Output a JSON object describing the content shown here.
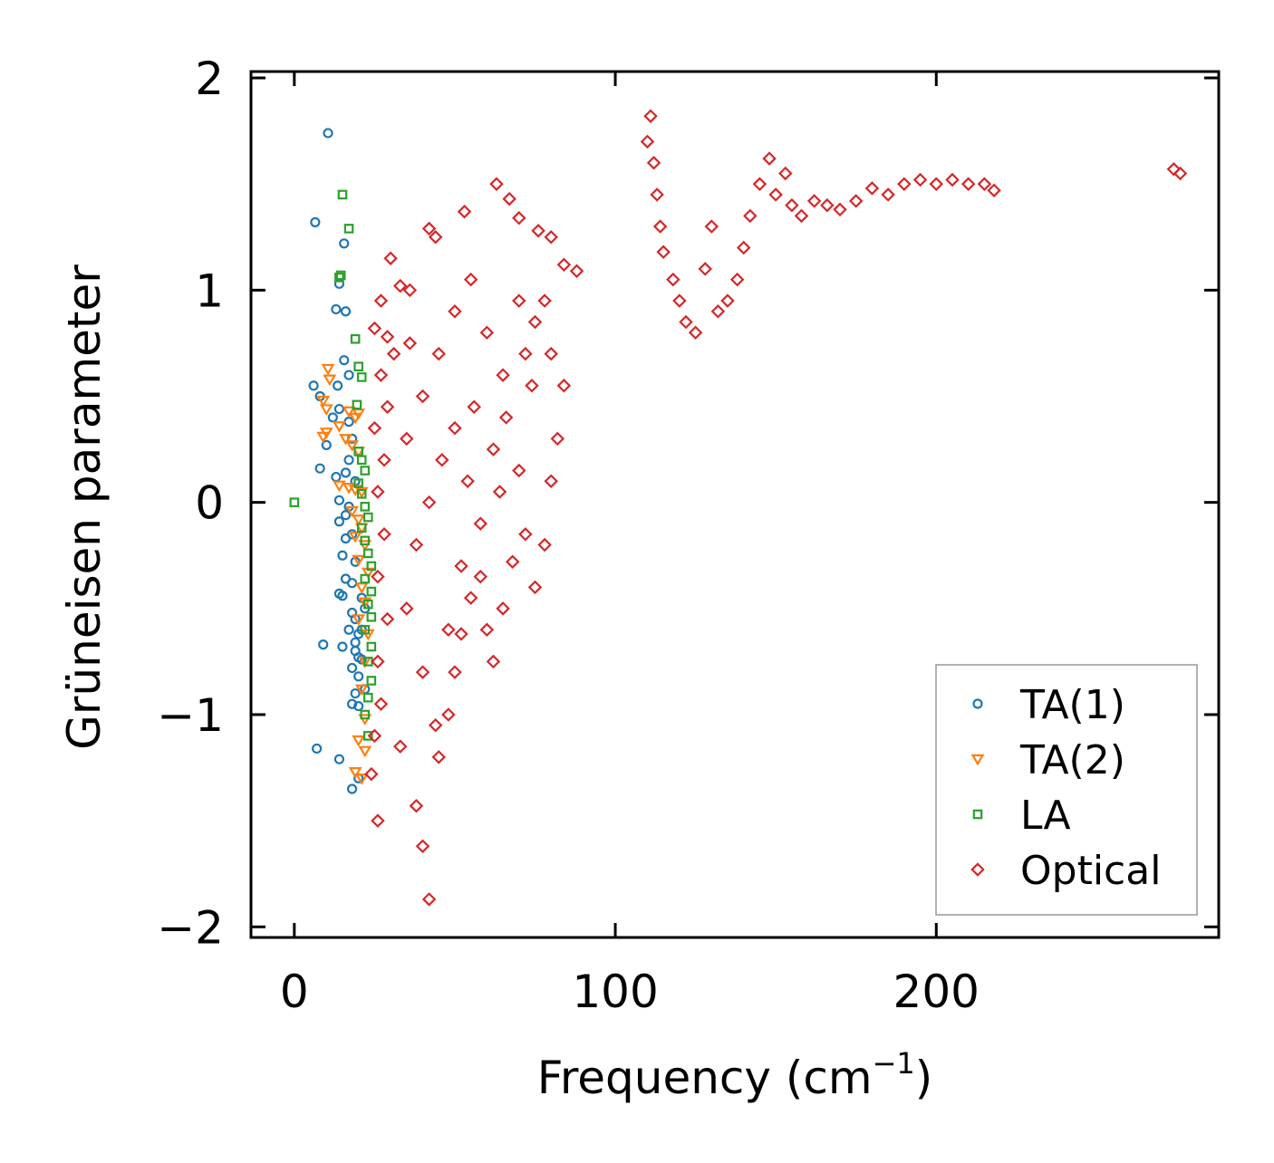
{
  "chart_data": {
    "type": "scatter",
    "title": "",
    "xlabel": "Frequency (cm",
    "xlabel_sup": "−1",
    "xlabel_end": ")",
    "ylabel": "Grüneisen parameter",
    "xlim": [
      -13.5,
      288
    ],
    "ylim": [
      -2.05,
      2.03
    ],
    "xticks": [
      0,
      100,
      200
    ],
    "xtick_labels": [
      "0",
      "100",
      "200"
    ],
    "yticks": [
      -2,
      -1,
      0,
      1,
      2
    ],
    "ytick_labels": [
      "−2",
      "−1",
      "0",
      "1",
      "2"
    ],
    "grid": false,
    "legend_position": "bottom-right",
    "series": [
      {
        "name": "TA(1)",
        "marker": "circle",
        "color": "#1f77b4",
        "points": [
          [
            10.5,
            1.74
          ],
          [
            6.5,
            1.32
          ],
          [
            15.5,
            1.22
          ],
          [
            14,
            1.03
          ],
          [
            13,
            0.91
          ],
          [
            16,
            0.9
          ],
          [
            15.5,
            0.67
          ],
          [
            17,
            0.6
          ],
          [
            6,
            0.55
          ],
          [
            13.5,
            0.55
          ],
          [
            8,
            0.5
          ],
          [
            12,
            0.4
          ],
          [
            14,
            0.44
          ],
          [
            17,
            0.38
          ],
          [
            18,
            0.3
          ],
          [
            10,
            0.27
          ],
          [
            8,
            0.16
          ],
          [
            13,
            0.12
          ],
          [
            16,
            0.14
          ],
          [
            17,
            0.2
          ],
          [
            19,
            0.1
          ],
          [
            14,
            0.01
          ],
          [
            16,
            -0.06
          ],
          [
            17,
            -0.02
          ],
          [
            14,
            -0.09
          ],
          [
            16,
            -0.17
          ],
          [
            18,
            -0.15
          ],
          [
            15,
            -0.25
          ],
          [
            19,
            -0.28
          ],
          [
            16,
            -0.36
          ],
          [
            18,
            -0.38
          ],
          [
            14,
            -0.43
          ],
          [
            15,
            -0.44
          ],
          [
            18,
            -0.52
          ],
          [
            19,
            -0.55
          ],
          [
            17,
            -0.6
          ],
          [
            20,
            -0.62
          ],
          [
            9,
            -0.67
          ],
          [
            15,
            -0.68
          ],
          [
            19,
            -0.7
          ],
          [
            20,
            -0.73
          ],
          [
            18,
            -0.78
          ],
          [
            20,
            -0.82
          ],
          [
            19,
            -0.9
          ],
          [
            18,
            -0.95
          ],
          [
            20,
            -0.96
          ],
          [
            21,
            -0.74
          ],
          [
            21,
            -0.6
          ],
          [
            22,
            -0.5
          ],
          [
            7,
            -1.16
          ],
          [
            14,
            -1.21
          ],
          [
            18,
            -1.35
          ],
          [
            20,
            -1.3
          ],
          [
            22,
            -0.88
          ],
          [
            19,
            -0.66
          ],
          [
            21,
            -0.45
          ]
        ]
      },
      {
        "name": "TA(2)",
        "marker": "triangle",
        "color": "#ff7f0e",
        "points": [
          [
            10.5,
            0.63
          ],
          [
            11,
            0.58
          ],
          [
            9,
            0.48
          ],
          [
            10,
            0.44
          ],
          [
            17,
            0.43
          ],
          [
            19,
            0.4
          ],
          [
            20,
            0.42
          ],
          [
            10,
            0.33
          ],
          [
            14,
            0.36
          ],
          [
            9,
            0.31
          ],
          [
            16,
            0.3
          ],
          [
            18,
            0.27
          ],
          [
            20,
            0.24
          ],
          [
            14,
            0.08
          ],
          [
            17,
            0.07
          ],
          [
            19,
            0.06
          ],
          [
            21,
            0.05
          ],
          [
            18,
            -0.04
          ],
          [
            20,
            -0.08
          ],
          [
            21,
            -0.12
          ],
          [
            19,
            -0.16
          ],
          [
            22,
            -0.2
          ],
          [
            20,
            -0.27
          ],
          [
            23,
            -0.33
          ],
          [
            21,
            -0.4
          ],
          [
            22,
            -0.47
          ],
          [
            20,
            -0.55
          ],
          [
            23,
            -0.62
          ],
          [
            22,
            -0.75
          ],
          [
            21,
            -0.88
          ],
          [
            22,
            -1.02
          ],
          [
            20,
            -1.12
          ],
          [
            22,
            -1.17
          ],
          [
            19,
            -1.27
          ],
          [
            21,
            -1.3
          ]
        ]
      },
      {
        "name": "LA",
        "marker": "square",
        "color": "#2ca02c",
        "points": [
          [
            15,
            1.45
          ],
          [
            17,
            1.29
          ],
          [
            14,
            1.06
          ],
          [
            14.5,
            1.07
          ],
          [
            19,
            0.77
          ],
          [
            20,
            0.64
          ],
          [
            21,
            0.59
          ],
          [
            19.5,
            0.46
          ],
          [
            20,
            0.24
          ],
          [
            21,
            0.2
          ],
          [
            22,
            0.15
          ],
          [
            20,
            0.09
          ],
          [
            21,
            0.04
          ],
          [
            22,
            -0.02
          ],
          [
            23,
            -0.07
          ],
          [
            21,
            -0.12
          ],
          [
            22,
            -0.18
          ],
          [
            23,
            -0.24
          ],
          [
            24,
            -0.3
          ],
          [
            22,
            -0.36
          ],
          [
            24,
            -0.42
          ],
          [
            23,
            -0.48
          ],
          [
            24,
            -0.54
          ],
          [
            22,
            -0.6
          ],
          [
            24,
            -0.68
          ],
          [
            23,
            -0.75
          ],
          [
            24,
            -0.84
          ],
          [
            23,
            -0.92
          ],
          [
            22,
            -1.0
          ],
          [
            23,
            -1.1
          ],
          [
            0,
            0.0
          ]
        ]
      },
      {
        "name": "Optical",
        "marker": "diamond",
        "color": "#d62728",
        "points": [
          [
            42,
            1.29
          ],
          [
            44,
            1.25
          ],
          [
            53,
            1.37
          ],
          [
            63,
            1.5
          ],
          [
            67,
            1.43
          ],
          [
            70,
            1.34
          ],
          [
            76,
            1.28
          ],
          [
            80,
            1.25
          ],
          [
            84,
            1.12
          ],
          [
            88,
            1.09
          ],
          [
            30,
            1.15
          ],
          [
            33,
            1.02
          ],
          [
            36,
            1.0
          ],
          [
            27,
            0.95
          ],
          [
            25,
            0.82
          ],
          [
            29,
            0.78
          ],
          [
            31,
            0.7
          ],
          [
            27,
            0.6
          ],
          [
            29,
            0.45
          ],
          [
            25,
            0.35
          ],
          [
            28,
            0.2
          ],
          [
            26,
            0.05
          ],
          [
            28,
            -0.15
          ],
          [
            26,
            -0.35
          ],
          [
            29,
            -0.55
          ],
          [
            26,
            -0.75
          ],
          [
            27,
            -0.95
          ],
          [
            25,
            -1.1
          ],
          [
            24,
            -1.28
          ],
          [
            26,
            -1.5
          ],
          [
            33,
            -1.15
          ],
          [
            38,
            -1.43
          ],
          [
            40,
            -1.62
          ],
          [
            42,
            -1.87
          ],
          [
            45,
            -1.2
          ],
          [
            48,
            -1.0
          ],
          [
            50,
            -0.8
          ],
          [
            52,
            -0.62
          ],
          [
            55,
            -0.45
          ],
          [
            58,
            -0.35
          ],
          [
            60,
            -0.6
          ],
          [
            62,
            -0.75
          ],
          [
            65,
            -0.5
          ],
          [
            68,
            -0.28
          ],
          [
            72,
            -0.15
          ],
          [
            75,
            -0.4
          ],
          [
            78,
            -0.2
          ],
          [
            80,
            0.1
          ],
          [
            82,
            0.3
          ],
          [
            84,
            0.55
          ],
          [
            35,
            0.3
          ],
          [
            40,
            0.5
          ],
          [
            45,
            0.7
          ],
          [
            50,
            0.9
          ],
          [
            55,
            1.05
          ],
          [
            60,
            0.8
          ],
          [
            65,
            0.6
          ],
          [
            70,
            0.95
          ],
          [
            75,
            0.85
          ],
          [
            80,
            0.7
          ],
          [
            38,
            -0.2
          ],
          [
            42,
            0.0
          ],
          [
            46,
            0.2
          ],
          [
            50,
            0.35
          ],
          [
            54,
            0.1
          ],
          [
            58,
            -0.1
          ],
          [
            62,
            0.25
          ],
          [
            66,
            0.4
          ],
          [
            70,
            0.15
          ],
          [
            74,
            0.55
          ],
          [
            35,
            -0.5
          ],
          [
            40,
            -0.8
          ],
          [
            44,
            -1.05
          ],
          [
            48,
            -0.6
          ],
          [
            52,
            -0.3
          ],
          [
            56,
            0.45
          ],
          [
            64,
            0.05
          ],
          [
            72,
            0.7
          ],
          [
            78,
            0.95
          ],
          [
            36,
            0.75
          ],
          [
            111,
            1.82
          ],
          [
            110,
            1.7
          ],
          [
            112,
            1.6
          ],
          [
            113,
            1.45
          ],
          [
            114,
            1.3
          ],
          [
            115,
            1.18
          ],
          [
            118,
            1.05
          ],
          [
            120,
            0.95
          ],
          [
            122,
            0.85
          ],
          [
            125,
            0.8
          ],
          [
            128,
            1.1
          ],
          [
            130,
            1.3
          ],
          [
            132,
            0.9
          ],
          [
            135,
            0.95
          ],
          [
            138,
            1.05
          ],
          [
            140,
            1.2
          ],
          [
            142,
            1.35
          ],
          [
            145,
            1.5
          ],
          [
            148,
            1.62
          ],
          [
            150,
            1.45
          ],
          [
            153,
            1.55
          ],
          [
            155,
            1.4
          ],
          [
            158,
            1.35
          ],
          [
            162,
            1.42
          ],
          [
            166,
            1.4
          ],
          [
            170,
            1.38
          ],
          [
            175,
            1.42
          ],
          [
            180,
            1.48
          ],
          [
            185,
            1.45
          ],
          [
            190,
            1.5
          ],
          [
            195,
            1.52
          ],
          [
            200,
            1.5
          ],
          [
            205,
            1.52
          ],
          [
            210,
            1.5
          ],
          [
            215,
            1.5
          ],
          [
            218,
            1.47
          ],
          [
            274,
            1.57
          ],
          [
            276,
            1.55
          ]
        ]
      }
    ]
  }
}
